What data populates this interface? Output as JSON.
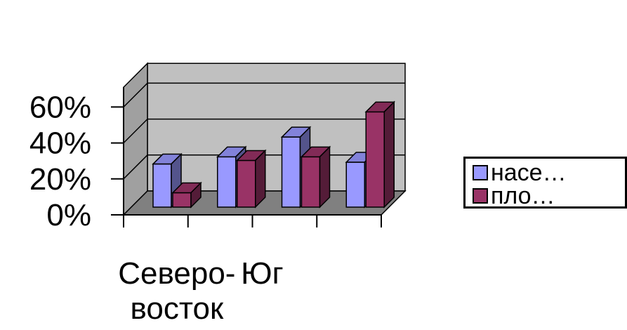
{
  "chart_data": {
    "type": "bar",
    "style": "3d-clustered-column",
    "categories": [
      "Северо-восток",
      "",
      "Юг",
      ""
    ],
    "category_labels": [
      {
        "lines": [
          "Северо-",
          "восток"
        ]
      },
      {
        "lines": [
          "Юг"
        ]
      }
    ],
    "series": [
      {
        "name": "насе…",
        "color": "#9999ff",
        "values": [
          24,
          28,
          39,
          25
        ]
      },
      {
        "name": "пло…",
        "color": "#993366",
        "values": [
          8,
          26,
          28,
          53
        ]
      }
    ],
    "y_ticks": [
      "0%",
      "20%",
      "40%",
      "60%"
    ],
    "ylim": [
      0,
      60
    ],
    "gridlines": true,
    "legend_position": "right",
    "wall_color": "#c0c0c0",
    "floor_color": "#808080"
  }
}
